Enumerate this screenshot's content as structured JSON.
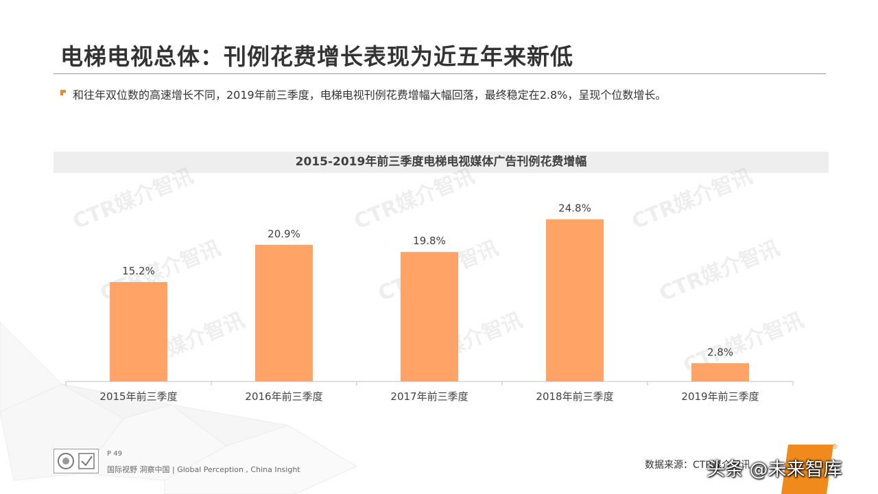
{
  "title": "电梯电视总体：刊例花费增长表现为近五年来新低",
  "bullet": "和往年双位数的高速增长不同，2019年前三季度，电梯电视刊例花费增幅大幅回落，最终稳定在2.8%，呈现个位数增长。",
  "watermark": "CTR媒介智讯",
  "footer": {
    "page": "P 49",
    "tagline": "国际视野  洞察中国 |  Global Perception , China Insight",
    "source": "数据来源：CTR媒介智讯",
    "overlay": "头条 @未来智库",
    "reg_mark": "®"
  },
  "colors": {
    "bar": "#ffa366",
    "accent": "#e98a2e",
    "brand": "#f08a1c"
  },
  "chart_data": {
    "type": "bar",
    "title": "2015-2019年前三季度电梯电视媒体广告刊例花费增幅",
    "categories": [
      "2015年前三季度",
      "2016年前三季度",
      "2017年前三季度",
      "2018年前三季度",
      "2019年前三季度"
    ],
    "values": [
      15.2,
      20.9,
      19.8,
      24.8,
      2.8
    ],
    "value_labels": [
      "15.2%",
      "20.9%",
      "19.8%",
      "24.8%",
      "2.8%"
    ],
    "ylim": [
      0,
      30
    ],
    "grid": false,
    "legend": "none"
  }
}
